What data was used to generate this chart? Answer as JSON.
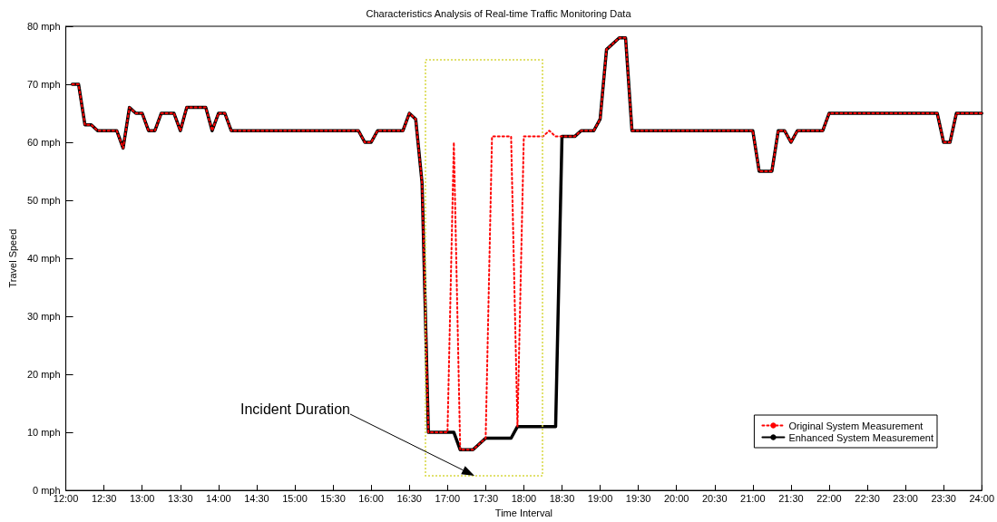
{
  "chart_data": {
    "type": "line",
    "title": "Characteristics Analysis of Real-time Traffic Monitoring Data",
    "xlabel": "Time Interval",
    "ylabel": "Travel Speed",
    "xlim": [
      12,
      24
    ],
    "ylim": [
      0,
      80
    ],
    "xticks": [
      {
        "value": 12,
        "label": "12:00"
      },
      {
        "value": 12.5,
        "label": "12:30"
      },
      {
        "value": 13,
        "label": "13:00"
      },
      {
        "value": 13.5,
        "label": "13:30"
      },
      {
        "value": 14,
        "label": "14:00"
      },
      {
        "value": 14.5,
        "label": "14:30"
      },
      {
        "value": 15,
        "label": "15:00"
      },
      {
        "value": 15.5,
        "label": "15:30"
      },
      {
        "value": 16,
        "label": "16:00"
      },
      {
        "value": 16.5,
        "label": "16:30"
      },
      {
        "value": 17,
        "label": "17:00"
      },
      {
        "value": 17.5,
        "label": "17:30"
      },
      {
        "value": 18,
        "label": "18:00"
      },
      {
        "value": 18.5,
        "label": "18:30"
      },
      {
        "value": 19,
        "label": "19:00"
      },
      {
        "value": 19.5,
        "label": "19:30"
      },
      {
        "value": 20,
        "label": "20:00"
      },
      {
        "value": 20.5,
        "label": "20:30"
      },
      {
        "value": 21,
        "label": "21:00"
      },
      {
        "value": 21.5,
        "label": "21:30"
      },
      {
        "value": 22,
        "label": "22:00"
      },
      {
        "value": 22.5,
        "label": "22:30"
      },
      {
        "value": 23,
        "label": "23:00"
      },
      {
        "value": 23.5,
        "label": "23:30"
      },
      {
        "value": 24,
        "label": "24:00"
      }
    ],
    "yticks": [
      {
        "value": 0,
        "label": "0 mph"
      },
      {
        "value": 10,
        "label": "10 mph"
      },
      {
        "value": 20,
        "label": "20 mph"
      },
      {
        "value": 30,
        "label": "30 mph"
      },
      {
        "value": 40,
        "label": "40 mph"
      },
      {
        "value": 50,
        "label": "50 mph"
      },
      {
        "value": 60,
        "label": "60 mph"
      },
      {
        "value": 70,
        "label": "70 mph"
      },
      {
        "value": 80,
        "label": "80 mph"
      }
    ],
    "series": [
      {
        "name": "Original System Measurement",
        "color": "#ff0000",
        "line_style": "dotted",
        "x": [
          12.0833,
          12.1667,
          12.25,
          12.3333,
          12.4167,
          12.6667,
          12.75,
          12.8333,
          12.9167,
          13.0,
          13.0833,
          13.1667,
          13.25,
          13.4167,
          13.5,
          13.5833,
          13.8333,
          13.9167,
          14.0,
          14.0833,
          14.1667,
          15.8333,
          15.9167,
          16.0,
          16.0833,
          16.4167,
          16.5,
          16.5833,
          16.6667,
          16.75,
          16.8333,
          16.9167,
          17.0,
          17.0833,
          17.1667,
          17.3333,
          17.5,
          17.5833,
          17.8333,
          17.9167,
          18.0,
          18.25,
          18.3333,
          18.4167,
          18.5,
          18.6667,
          18.75,
          18.9167,
          19.0,
          19.0833,
          19.25,
          19.3333,
          19.4167,
          21.0,
          21.0833,
          21.25,
          21.3333,
          21.4167,
          21.5,
          21.5833,
          21.9167,
          22.0,
          23.4167,
          23.5,
          23.5833,
          23.6667,
          24.0
        ],
        "values": [
          70,
          70,
          63,
          63,
          62,
          62,
          59,
          66,
          65,
          65,
          62,
          62,
          65,
          65,
          62,
          66,
          66,
          62,
          65,
          65,
          62,
          62,
          60,
          60,
          62,
          62,
          65,
          64,
          53,
          10,
          10,
          10,
          10,
          60,
          7,
          7,
          9,
          61,
          61,
          11,
          61,
          61,
          62,
          61,
          61,
          61,
          62,
          62,
          64,
          76,
          78,
          78,
          62,
          62,
          55,
          55,
          62,
          62,
          60,
          62,
          62,
          65,
          65,
          60,
          60,
          65,
          65
        ]
      },
      {
        "name": "Enhanced System Measurement",
        "color": "#000000",
        "line_style": "solid",
        "x": [
          12.0833,
          12.1667,
          12.25,
          12.3333,
          12.4167,
          12.6667,
          12.75,
          12.8333,
          12.9167,
          13.0,
          13.0833,
          13.1667,
          13.25,
          13.4167,
          13.5,
          13.5833,
          13.8333,
          13.9167,
          14.0,
          14.0833,
          14.1667,
          15.8333,
          15.9167,
          16.0,
          16.0833,
          16.4167,
          16.5,
          16.5833,
          16.6667,
          16.75,
          16.8333,
          16.9167,
          17.0,
          17.0833,
          17.1667,
          17.3333,
          17.5,
          17.8333,
          17.9167,
          18.4167,
          18.5,
          18.6667,
          18.75,
          18.9167,
          19.0,
          19.0833,
          19.25,
          19.3333,
          19.4167,
          21.0,
          21.0833,
          21.25,
          21.3333,
          21.4167,
          21.5,
          21.5833,
          21.9167,
          22.0,
          23.4167,
          23.5,
          23.5833,
          23.6667,
          24.0
        ],
        "values": [
          70,
          70,
          63,
          63,
          62,
          62,
          59,
          66,
          65,
          65,
          62,
          62,
          65,
          65,
          62,
          66,
          66,
          62,
          65,
          65,
          62,
          62,
          60,
          60,
          62,
          62,
          65,
          64,
          53,
          10,
          10,
          10,
          10,
          10,
          7,
          7,
          9,
          9,
          11,
          11,
          61,
          61,
          62,
          62,
          64,
          76,
          78,
          78,
          62,
          62,
          55,
          55,
          62,
          62,
          60,
          62,
          62,
          65,
          65,
          60,
          60,
          65,
          65
        ]
      }
    ],
    "annotations": [
      "Incident Duration"
    ],
    "grid": false,
    "legend": "bottom right",
    "marker": "none"
  }
}
